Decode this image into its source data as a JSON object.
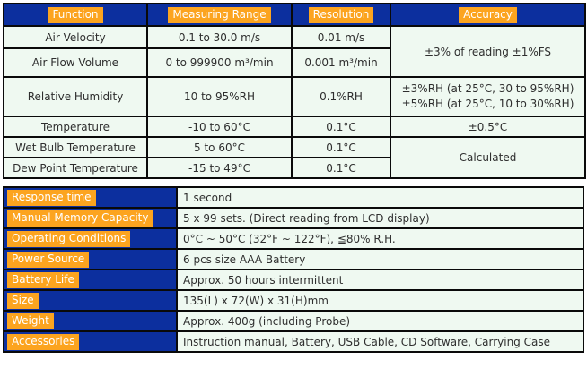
{
  "colors": {
    "header_blue": "#0c2f9e",
    "highlight_orange": "#fca41f",
    "cell_mint": "#eff9f1",
    "border_black": "#0a0a0a",
    "label_text_white": "#ffffff",
    "body_text": "#2e2e2e"
  },
  "spec": {
    "headers": {
      "function": "Function",
      "range": "Measuring Range",
      "resolution": "Resolution",
      "accuracy": "Accuracy"
    },
    "rows": [
      {
        "function": "Air Velocity",
        "range": "0.1 to 30.0 m/s",
        "resolution": "0.01 m/s"
      },
      {
        "function": "Air Flow Volume",
        "range": "0 to 999900 m³/min",
        "resolution": "0.001 m³/min"
      },
      {
        "function": "Relative Humidity",
        "range": "10 to 95%RH",
        "resolution": "0.1%RH"
      },
      {
        "function": "Temperature",
        "range": "-10 to 60°C",
        "resolution": "0.1°C"
      },
      {
        "function": "Wet Bulb Temperature",
        "range": "5 to 60°C",
        "resolution": "0.1°C"
      },
      {
        "function": "Dew Point Temperature",
        "range": "-15 to 49°C",
        "resolution": "0.1°C"
      }
    ],
    "accuracy": {
      "velocity_flow": "±3% of reading ±1%FS",
      "humidity_line1": "±3%RH (at 25°C, 30 to 95%RH)",
      "humidity_line2": "±5%RH (at 25°C, 10 to 30%RH)",
      "temperature": "±0.5°C",
      "wet_dew": "Calculated"
    }
  },
  "info": {
    "rows": [
      {
        "label": "Response time",
        "value": "1 second"
      },
      {
        "label": "Manual Memory Capacity",
        "value": "5 x 99 sets. (Direct reading from LCD display)"
      },
      {
        "label": "Operating Conditions",
        "value": "0°C ~ 50°C (32°F ~ 122°F), ≦80% R.H."
      },
      {
        "label": "Power Source",
        "value": "6 pcs size AAA Battery"
      },
      {
        "label": "Battery Life",
        "value": "Approx. 50 hours intermittent"
      },
      {
        "label": "Size",
        "value": "135(L) x 72(W) x 31(H)mm"
      },
      {
        "label": "Weight",
        "value": "Approx. 400g (including Probe)"
      },
      {
        "label": "Accessories",
        "value": "Instruction manual, Battery, USB Cable, CD Software, Carrying Case"
      }
    ]
  }
}
